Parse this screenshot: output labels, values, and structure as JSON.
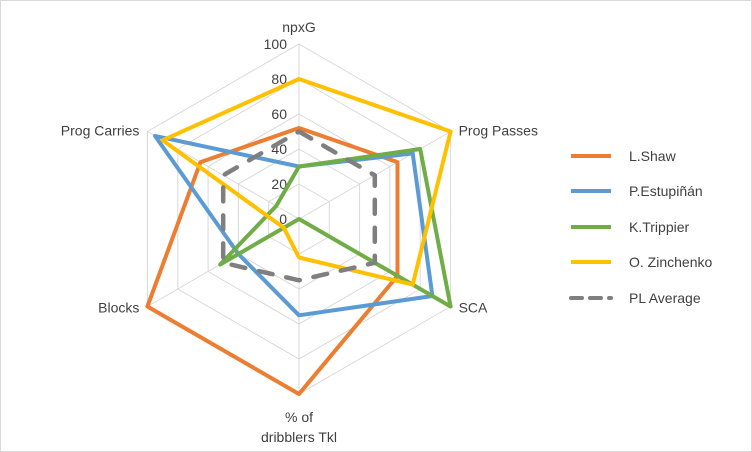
{
  "chart_data": {
    "type": "radar",
    "axes": [
      "npxG",
      "Prog Passes",
      "SCA",
      "% of dribblers Tkl",
      "Blocks",
      "Prog Carries"
    ],
    "axis_label_lines": [
      [
        "npxG"
      ],
      [
        "Prog Passes"
      ],
      [
        "SCA"
      ],
      [
        "% of",
        "dribblers Tkl"
      ],
      [
        "Blocks"
      ],
      [
        "Prog Carries"
      ]
    ],
    "rlim": [
      0,
      100
    ],
    "ticks": [
      "0",
      "20",
      "40",
      "60",
      "80",
      "100"
    ],
    "tick_values": [
      0,
      20,
      40,
      60,
      80,
      100
    ],
    "grid": true,
    "legend_position": "right",
    "series": [
      {
        "name": "L.Shaw",
        "color": "#ED7D31",
        "dash": false,
        "values": [
          52,
          65,
          65,
          100,
          100,
          65
        ]
      },
      {
        "name": "P.Estupiñán",
        "color": "#5B9BD5",
        "dash": false,
        "values": [
          30,
          75,
          88,
          55,
          40,
          95
        ]
      },
      {
        "name": "K.Trippier",
        "color": "#70AD47",
        "dash": false,
        "values": [
          30,
          80,
          100,
          0,
          52,
          15
        ]
      },
      {
        "name": "O. Zinchenko",
        "color": "#FFC000",
        "dash": false,
        "values": [
          80,
          100,
          75,
          22,
          10,
          90
        ]
      },
      {
        "name": "PL Average",
        "color": "#7F7F7F",
        "dash": true,
        "values": [
          50,
          50,
          50,
          35,
          50,
          50
        ]
      }
    ]
  }
}
